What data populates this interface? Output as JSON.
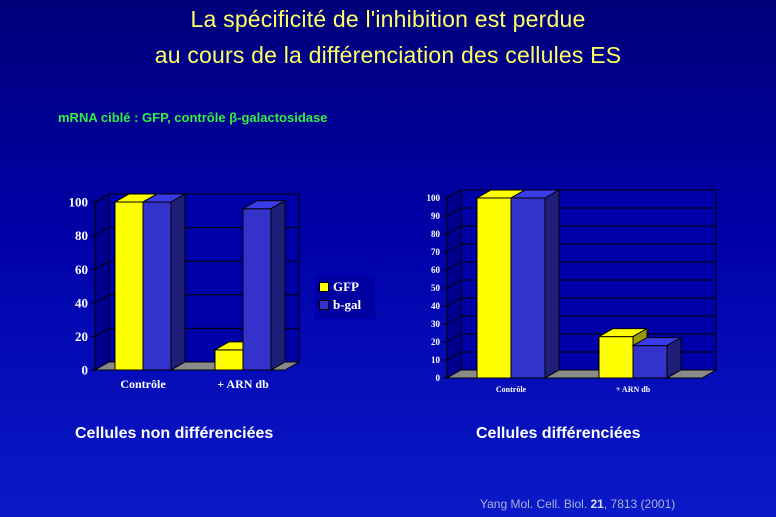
{
  "title_line1": "La spécificité de l'inhibition est perdue",
  "title_line2": "au cours de la différenciation des cellules ES",
  "subtitle": "mRNA ciblé : GFP, contrôle β-galactosidase",
  "source": {
    "prefix": "Yang Mol. Cell. Biol. ",
    "volume": "21",
    "suffix": ", 7813 (2001)"
  },
  "legend": [
    {
      "label": "GFP",
      "color": "#ffff00"
    },
    {
      "label": "b-gal",
      "color": "#3333cc"
    }
  ],
  "chart_data": [
    {
      "type": "bar",
      "title": "Cellules non différenciées",
      "categories": [
        "Contrôle",
        "+ ARN db"
      ],
      "series": [
        {
          "name": "GFP",
          "values": [
            100,
            12
          ]
        },
        {
          "name": "b-gal",
          "values": [
            100,
            96
          ]
        }
      ],
      "ylim": [
        0,
        100
      ],
      "yticks": [
        0,
        20,
        40,
        60,
        80,
        100
      ],
      "grid": true,
      "legend_position": "right"
    },
    {
      "type": "bar",
      "title": "Cellules différenciées",
      "categories": [
        "Contrôle",
        "+ ARN db"
      ],
      "series": [
        {
          "name": "GFP",
          "values": [
            100,
            23
          ]
        },
        {
          "name": "b-gal",
          "values": [
            100,
            18
          ]
        }
      ],
      "ylim": [
        0,
        100
      ],
      "yticks": [
        0,
        10,
        20,
        30,
        40,
        50,
        60,
        70,
        80,
        90,
        100
      ],
      "grid": true
    }
  ]
}
